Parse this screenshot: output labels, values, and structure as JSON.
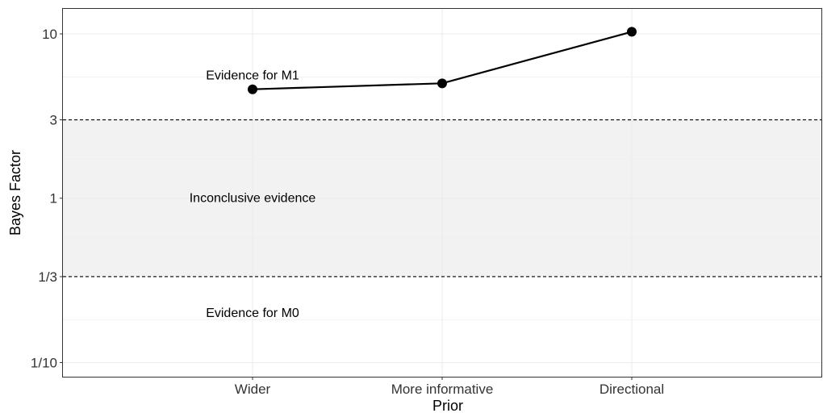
{
  "chart_data": {
    "type": "line",
    "title": "",
    "xlabel": "Prior",
    "ylabel": "Bayes Factor",
    "y_scale": "log",
    "grid": true,
    "legend": "none",
    "categories": [
      "Wider",
      "More informative",
      "Directional"
    ],
    "series": [
      {
        "values": [
          4.6,
          5.0,
          10.3
        ]
      }
    ],
    "y_ticks": [
      {
        "value": 0.1,
        "label": "1/10"
      },
      {
        "value": 0.3333,
        "label": "1/3"
      },
      {
        "value": 1,
        "label": "1"
      },
      {
        "value": 3,
        "label": "3"
      },
      {
        "value": 10,
        "label": "10"
      }
    ],
    "ylim": [
      0.082,
      14.2
    ],
    "shaded_band": {
      "from": 0.3333,
      "to": 3,
      "color": "#f2f2f2"
    },
    "reference_lines": [
      0.3333,
      3
    ],
    "annotations": [
      {
        "text": "Evidence for M1",
        "category": "Wider",
        "y": 5.6
      },
      {
        "text": "Inconclusive evidence",
        "category": "Wider",
        "y": 1.0
      },
      {
        "text": "Evidence for M0",
        "category": "Wider",
        "y": 0.2
      }
    ],
    "colors": {
      "line": "#000000",
      "band": "#f2f2f2",
      "grid": "#ebebeb",
      "panel_border": "#333333"
    }
  }
}
